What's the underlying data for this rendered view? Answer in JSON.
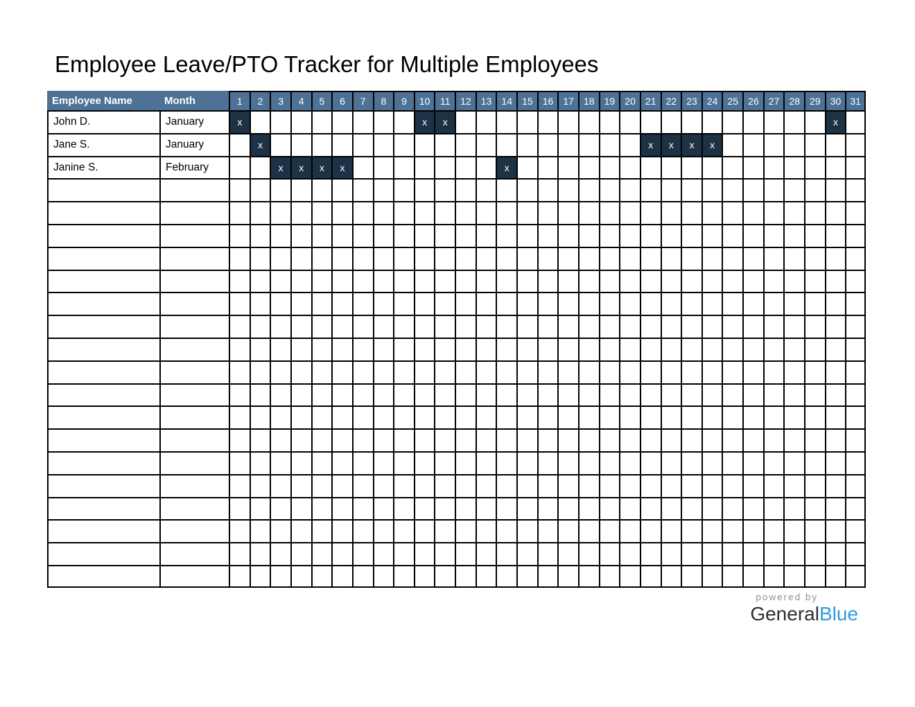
{
  "title": "Employee Leave/PTO Tracker for Multiple Employees",
  "colors": {
    "header_bg": "#4e7296",
    "mark_bg": "#1e3245",
    "grid_border": "#000000",
    "header_text": "#ffffff",
    "brand_blue": "#2f9cdb",
    "powered_by_gray": "#8f8f8f"
  },
  "table": {
    "headers": {
      "employee": "Employee Name",
      "month": "Month"
    },
    "days": [
      1,
      2,
      3,
      4,
      5,
      6,
      7,
      8,
      9,
      10,
      11,
      12,
      13,
      14,
      15,
      16,
      17,
      18,
      19,
      20,
      21,
      22,
      23,
      24,
      25,
      26,
      27,
      28,
      29,
      30,
      31
    ],
    "mark_symbol": "x",
    "rows": [
      {
        "employee": "John D.",
        "month": "January",
        "marked_days": [
          1,
          10,
          11,
          30
        ]
      },
      {
        "employee": "Jane S.",
        "month": "January",
        "marked_days": [
          2,
          21,
          22,
          23,
          24
        ]
      },
      {
        "employee": "Janine S.",
        "month": "February",
        "marked_days": [
          3,
          4,
          5,
          6,
          14
        ]
      }
    ],
    "empty_row_count": 18
  },
  "footer": {
    "powered_by": "powered by",
    "brand_general": "General",
    "brand_blue": "Blue"
  }
}
